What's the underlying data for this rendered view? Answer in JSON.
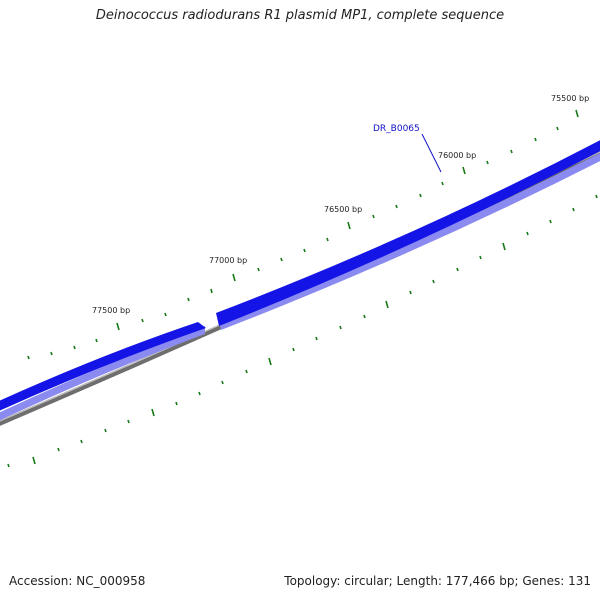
{
  "title": "Deinococcus radiodurans R1 plasmid MP1, complete sequence",
  "footer": {
    "accession": "Accession: NC_000958",
    "summary": "Topology: circular; Length: 177,466 bp; Genes: 131"
  },
  "colors": {
    "gene_fill": "#1414e6",
    "gene_shadow": "#8a8af0",
    "backbone": "#7a7a7a",
    "tick": "#1a7a1a",
    "gene_label": "#1010c8"
  },
  "bp_labels": [
    "75500 bp",
    "76000 bp",
    "76500 bp",
    "77000 bp",
    "77500 bp"
  ],
  "genes": [
    {
      "name": "DR_B0065",
      "labeled": true
    },
    {
      "name": "",
      "labeled": false
    }
  ]
}
